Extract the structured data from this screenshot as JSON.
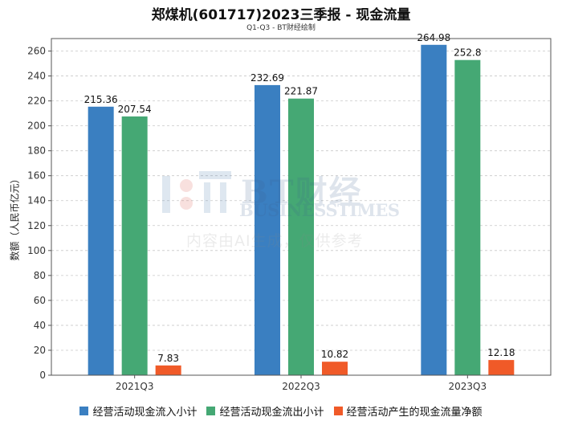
{
  "title": "郑煤机(601717)2023三季报 - 现金流量",
  "subtitle": "Q1-Q3 - BT财经绘制",
  "watermark": {
    "brand_cn": "BT财经",
    "brand_en": "BUSINESSTIMES",
    "note": "内容由AI生成，仅供参考"
  },
  "chart_data": {
    "type": "bar",
    "title": "郑煤机(601717)2023三季报 - 现金流量",
    "subtitle": "Q1-Q3 - BT财经绘制",
    "xlabel": "",
    "ylabel": "数额（人民币亿元）",
    "categories": [
      "2021Q3",
      "2022Q3",
      "2023Q3"
    ],
    "series": [
      {
        "name": "经营活动现金流入小计",
        "color": "#3a7fc1",
        "values": [
          215.36,
          232.69,
          264.98
        ]
      },
      {
        "name": "经营活动现金流出小计",
        "color": "#45a874",
        "values": [
          207.54,
          221.87,
          252.8
        ]
      },
      {
        "name": "经营活动产生的现金流量净额",
        "color": "#f05a28",
        "values": [
          7.83,
          10.82,
          12.18
        ]
      }
    ],
    "data_labels": [
      [
        "215.36",
        "232.69",
        "264.98"
      ],
      [
        "207.54",
        "221.87",
        "252.8"
      ],
      [
        "7.83",
        "10.82",
        "12.18"
      ]
    ],
    "yticks": [
      0,
      20,
      40,
      60,
      80,
      100,
      120,
      140,
      160,
      180,
      200,
      220,
      240,
      260
    ],
    "ylim": [
      0,
      270
    ],
    "grid": true,
    "legend": "bottom"
  }
}
